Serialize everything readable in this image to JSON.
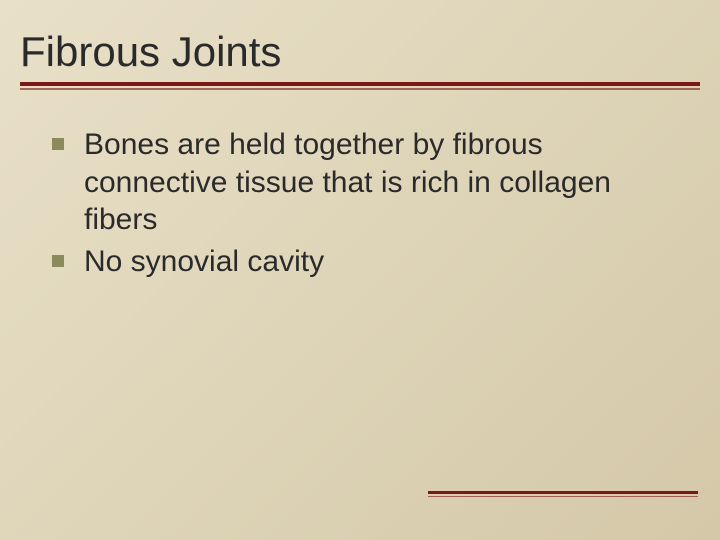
{
  "slide": {
    "title": "Fibrous Joints",
    "bullets": [
      "Bones are held together by fibrous connective tissue that is rich in collagen fibers",
      "No synovial cavity"
    ]
  },
  "styling": {
    "background_gradient": [
      "#e8e0c8",
      "#ded4b8",
      "#d4c8a8"
    ],
    "title_color": "#2a2a2a",
    "title_fontsize": 42,
    "underline_color": "#7a1818",
    "bullet_color": "#8a8a5a",
    "bullet_size": 12,
    "body_text_color": "#2a2a2a",
    "body_fontsize": 30,
    "footer_line_color": "#7a1818",
    "footer_line_width": 270
  }
}
